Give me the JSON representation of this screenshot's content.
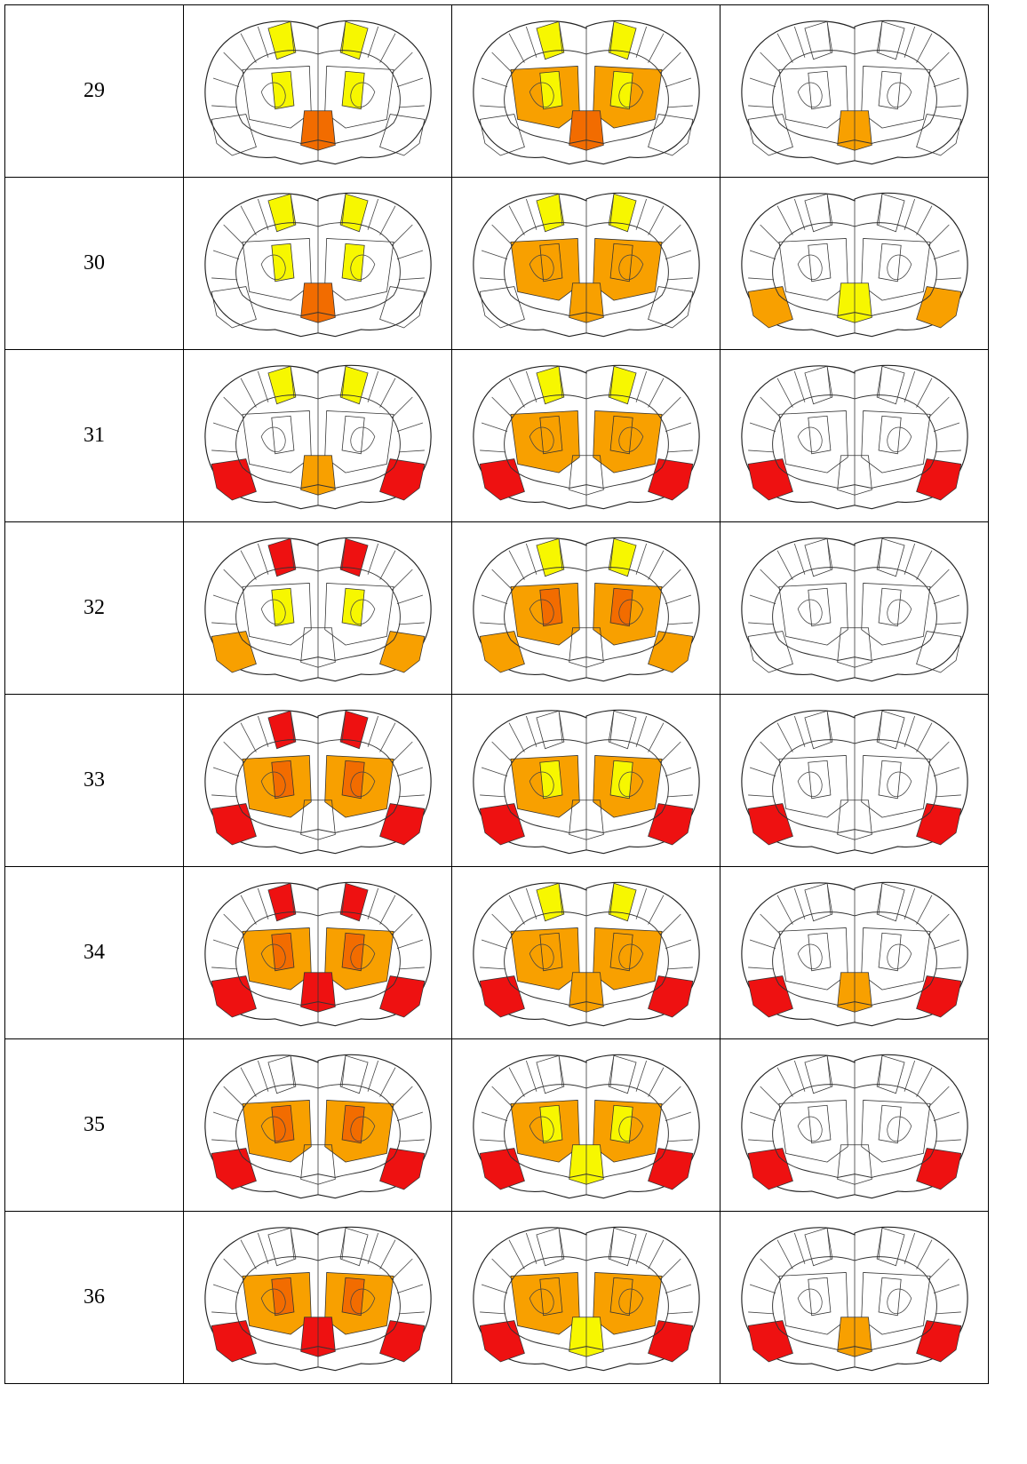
{
  "table": {
    "rows": [
      {
        "label": "29"
      },
      {
        "label": "30"
      },
      {
        "label": "31"
      },
      {
        "label": "32"
      },
      {
        "label": "33"
      },
      {
        "label": "34"
      },
      {
        "label": "35"
      },
      {
        "label": "36"
      }
    ]
  }
}
